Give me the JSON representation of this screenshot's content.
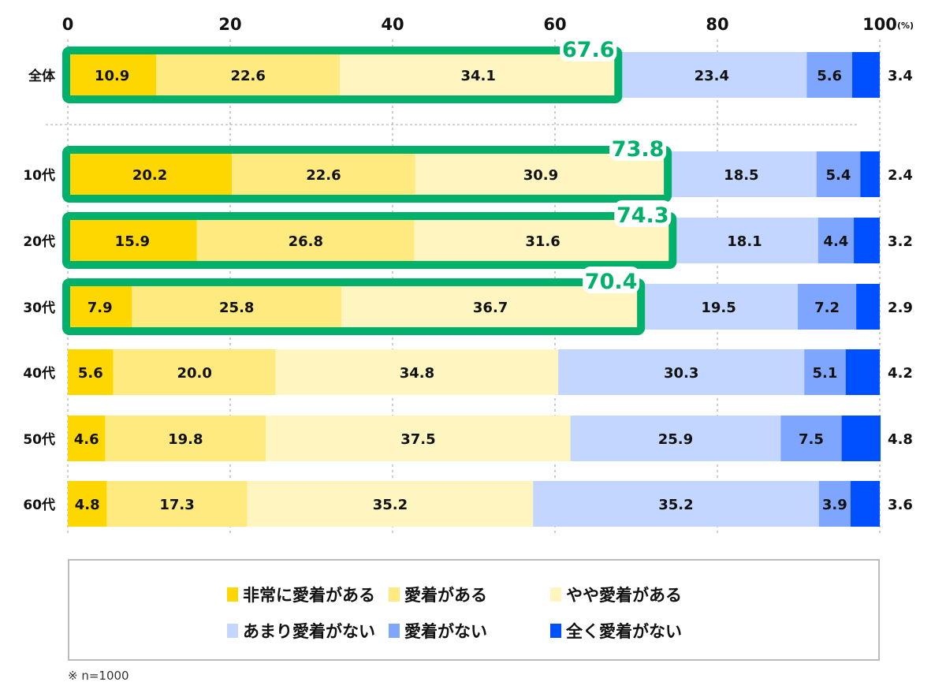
{
  "chart_data": {
    "type": "bar",
    "orientation": "horizontal-stacked-100",
    "unit_label": "(%)",
    "xlim": [
      0,
      100
    ],
    "x_ticks": [
      0,
      20,
      40,
      60,
      80,
      100
    ],
    "categories": [
      "全体",
      "10代",
      "20代",
      "30代",
      "40代",
      "50代",
      "60代"
    ],
    "series": [
      {
        "name": "非常に愛着がある",
        "color": "#FFD700",
        "values": [
          10.9,
          20.2,
          15.9,
          7.9,
          5.6,
          4.6,
          4.8
        ]
      },
      {
        "name": "愛着がある",
        "color": "#FFEA80",
        "values": [
          22.6,
          22.6,
          26.8,
          25.8,
          20.0,
          19.8,
          17.3
        ]
      },
      {
        "name": "やや愛着がある",
        "color": "#FFF5C0",
        "values": [
          34.1,
          30.9,
          31.6,
          36.7,
          34.8,
          37.5,
          35.2
        ]
      },
      {
        "name": "あまり愛着がない",
        "color": "#C2D6FF",
        "values": [
          23.4,
          18.5,
          18.1,
          19.5,
          30.3,
          25.9,
          35.2
        ]
      },
      {
        "name": "愛着がない",
        "color": "#7FA6FF",
        "values": [
          5.6,
          5.4,
          4.4,
          7.2,
          5.1,
          7.5,
          3.9
        ]
      },
      {
        "name": "全く愛着がない",
        "color": "#0050FF",
        "values": [
          3.4,
          2.4,
          3.2,
          2.9,
          4.2,
          4.8,
          3.6
        ]
      }
    ],
    "highlight_totals": [
      {
        "category": "全体",
        "label": "67.6"
      },
      {
        "category": "10代",
        "label": "73.8"
      },
      {
        "category": "20代",
        "label": "74.3"
      },
      {
        "category": "30代",
        "label": "70.4"
      }
    ],
    "highlight_color": "#00B06B",
    "legend_position": "bottom",
    "note": "※ n=1000"
  }
}
